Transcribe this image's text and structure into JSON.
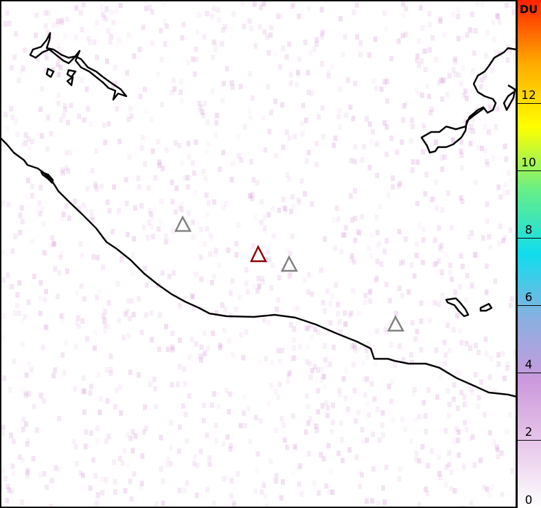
{
  "colorbar": {
    "unit": "DU",
    "min": 0,
    "max": 15,
    "ticks": [
      "0",
      "2",
      "4",
      "6",
      "8",
      "10",
      "12"
    ],
    "colors": [
      "#ffffff",
      "#e8c8ea",
      "#cc99dd",
      "#88b0e0",
      "#11dded",
      "#66ee88",
      "#ffff00",
      "#ffaa00",
      "#ff2200"
    ]
  },
  "markers": {
    "active_volcano_color": "#8b0000",
    "other_volcano_color": "#808080"
  },
  "field_color": "#c878c8",
  "coastline_color": "#000000"
}
